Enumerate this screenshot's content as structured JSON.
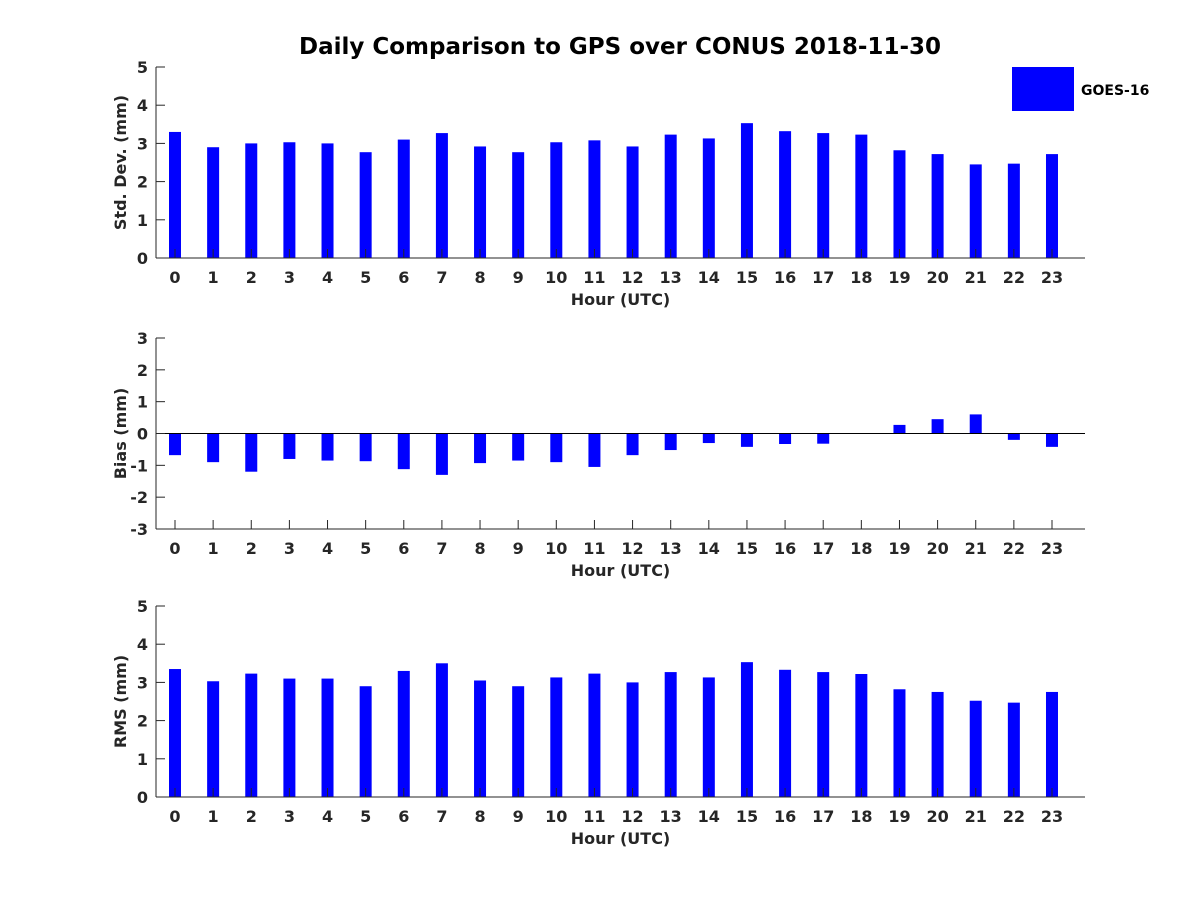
{
  "title": "Daily Comparison to GPS over CONUS 2018-11-30",
  "colors": {
    "bar": "#0000ff",
    "axis": "#262626"
  },
  "legend": {
    "label": "GOES-16",
    "placement": "top-right"
  },
  "chart_data": [
    {
      "type": "bar",
      "name": "std-dev",
      "ylabel": "Std. Dev. (mm)",
      "xlabel": "Hour (UTC)",
      "ylim": [
        0,
        5
      ],
      "yticks": [
        0,
        1,
        2,
        3,
        4,
        5
      ],
      "categories": [
        "0",
        "1",
        "2",
        "3",
        "4",
        "5",
        "6",
        "7",
        "8",
        "9",
        "10",
        "11",
        "12",
        "13",
        "14",
        "15",
        "16",
        "17",
        "18",
        "19",
        "20",
        "21",
        "22",
        "23"
      ],
      "series": [
        {
          "name": "GOES-16",
          "values": [
            3.3,
            2.9,
            3.0,
            3.03,
            3.0,
            2.77,
            3.1,
            3.27,
            2.92,
            2.77,
            3.03,
            3.08,
            2.92,
            3.23,
            3.13,
            3.53,
            3.32,
            3.27,
            3.23,
            2.82,
            2.72,
            2.45,
            2.47,
            2.72
          ]
        }
      ]
    },
    {
      "type": "bar",
      "name": "bias",
      "ylabel": "Bias (mm)",
      "xlabel": "Hour (UTC)",
      "ylim": [
        -3,
        3
      ],
      "yticks": [
        -3,
        -2,
        -1,
        0,
        1,
        2,
        3
      ],
      "categories": [
        "0",
        "1",
        "2",
        "3",
        "4",
        "5",
        "6",
        "7",
        "8",
        "9",
        "10",
        "11",
        "12",
        "13",
        "14",
        "15",
        "16",
        "17",
        "18",
        "19",
        "20",
        "21",
        "22",
        "23"
      ],
      "series": [
        {
          "name": "GOES-16",
          "values": [
            -0.68,
            -0.9,
            -1.2,
            -0.8,
            -0.85,
            -0.87,
            -1.12,
            -1.3,
            -0.93,
            -0.85,
            -0.9,
            -1.05,
            -0.68,
            -0.52,
            -0.3,
            -0.42,
            -0.33,
            -0.32,
            0.0,
            0.27,
            0.45,
            0.6,
            -0.2,
            -0.42
          ]
        }
      ]
    },
    {
      "type": "bar",
      "name": "rms",
      "ylabel": "RMS (mm)",
      "xlabel": "Hour (UTC)",
      "ylim": [
        0,
        5
      ],
      "yticks": [
        0,
        1,
        2,
        3,
        4,
        5
      ],
      "categories": [
        "0",
        "1",
        "2",
        "3",
        "4",
        "5",
        "6",
        "7",
        "8",
        "9",
        "10",
        "11",
        "12",
        "13",
        "14",
        "15",
        "16",
        "17",
        "18",
        "19",
        "20",
        "21",
        "22",
        "23"
      ],
      "series": [
        {
          "name": "GOES-16",
          "values": [
            3.35,
            3.03,
            3.23,
            3.1,
            3.1,
            2.9,
            3.3,
            3.5,
            3.05,
            2.9,
            3.13,
            3.23,
            3.0,
            3.27,
            3.13,
            3.53,
            3.33,
            3.27,
            3.22,
            2.82,
            2.75,
            2.52,
            2.47,
            2.75
          ]
        }
      ]
    }
  ]
}
